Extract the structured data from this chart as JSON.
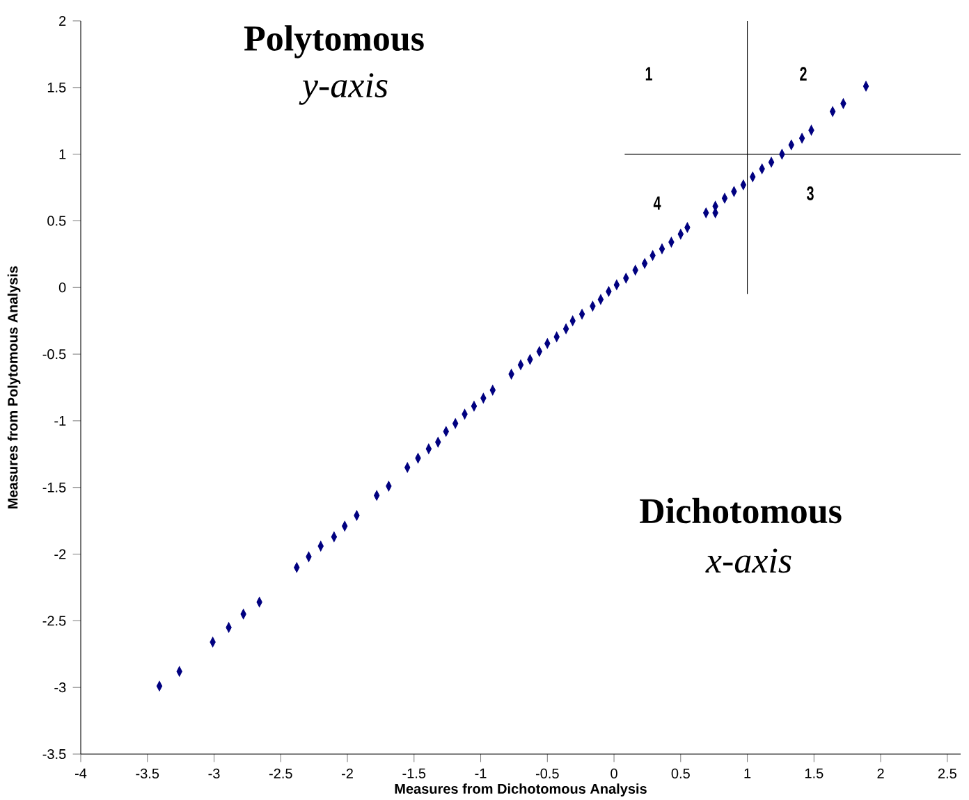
{
  "chart_data": {
    "type": "scatter",
    "xlabel": "Measures from Dichotomous Analysis",
    "ylabel": "Measures from Polytomous Analysis",
    "annotations": [
      "Polytomous",
      "y-axis",
      "Dichotomous",
      "x-axis",
      "1",
      "2",
      "3",
      "4"
    ],
    "xlim": [
      -4,
      2.6
    ],
    "ylim": [
      -3.5,
      2
    ],
    "xticks": [
      -4,
      -3.5,
      -3,
      -2.5,
      -2,
      -1.5,
      -1,
      -0.5,
      0,
      0.5,
      1,
      1.5,
      2,
      2.5
    ],
    "yticks": [
      -3.5,
      -3,
      -2.5,
      -2,
      -1.5,
      -1,
      -0.5,
      0,
      0.5,
      1,
      1.5,
      2
    ],
    "grid": false,
    "marker": "diamond",
    "series": [
      {
        "color": "#000080",
        "x": [
          -3.41,
          -3.26,
          -3.01,
          -2.89,
          -2.78,
          -2.66,
          -2.38,
          -2.29,
          -2.2,
          -2.1,
          -2.02,
          -1.93,
          -1.78,
          -1.69,
          -1.55,
          -1.47,
          -1.39,
          -1.32,
          -1.26,
          -1.19,
          -1.12,
          -1.05,
          -0.98,
          -0.91,
          -0.77,
          -0.7,
          -0.63,
          -0.56,
          -0.5,
          -0.43,
          -0.36,
          -0.31,
          -0.24,
          -0.16,
          -0.1,
          -0.04,
          0.02,
          0.09,
          0.16,
          0.23,
          0.29,
          0.36,
          0.43,
          0.5,
          0.55,
          0.69,
          0.76,
          0.76,
          0.83,
          0.9,
          0.97,
          1.04,
          1.11,
          1.18,
          1.26,
          1.33,
          1.41,
          1.48,
          1.64,
          1.72,
          1.89
        ],
        "values": [
          -2.99,
          -2.88,
          -2.66,
          -2.55,
          -2.45,
          -2.36,
          -2.1,
          -2.02,
          -1.94,
          -1.87,
          -1.79,
          -1.71,
          -1.56,
          -1.49,
          -1.35,
          -1.28,
          -1.21,
          -1.16,
          -1.08,
          -1.02,
          -0.95,
          -0.89,
          -0.83,
          -0.77,
          -0.65,
          -0.58,
          -0.54,
          -0.48,
          -0.42,
          -0.37,
          -0.31,
          -0.25,
          -0.2,
          -0.14,
          -0.09,
          -0.03,
          0.02,
          0.07,
          0.13,
          0.18,
          0.24,
          0.29,
          0.34,
          0.4,
          0.45,
          0.56,
          0.56,
          0.61,
          0.67,
          0.72,
          0.77,
          0.83,
          0.89,
          0.94,
          1.0,
          1.07,
          1.12,
          1.18,
          1.32,
          1.38,
          1.51
        ]
      },
      {
        "type": "line",
        "color": "#000000",
        "marker": "none",
        "x": [
          1,
          1
        ],
        "values": [
          2,
          -0.05
        ]
      },
      {
        "type": "line",
        "color": "#000000",
        "marker": "none",
        "x": [
          0.08,
          2.6
        ],
        "values": [
          1.0,
          1.0
        ]
      }
    ]
  }
}
